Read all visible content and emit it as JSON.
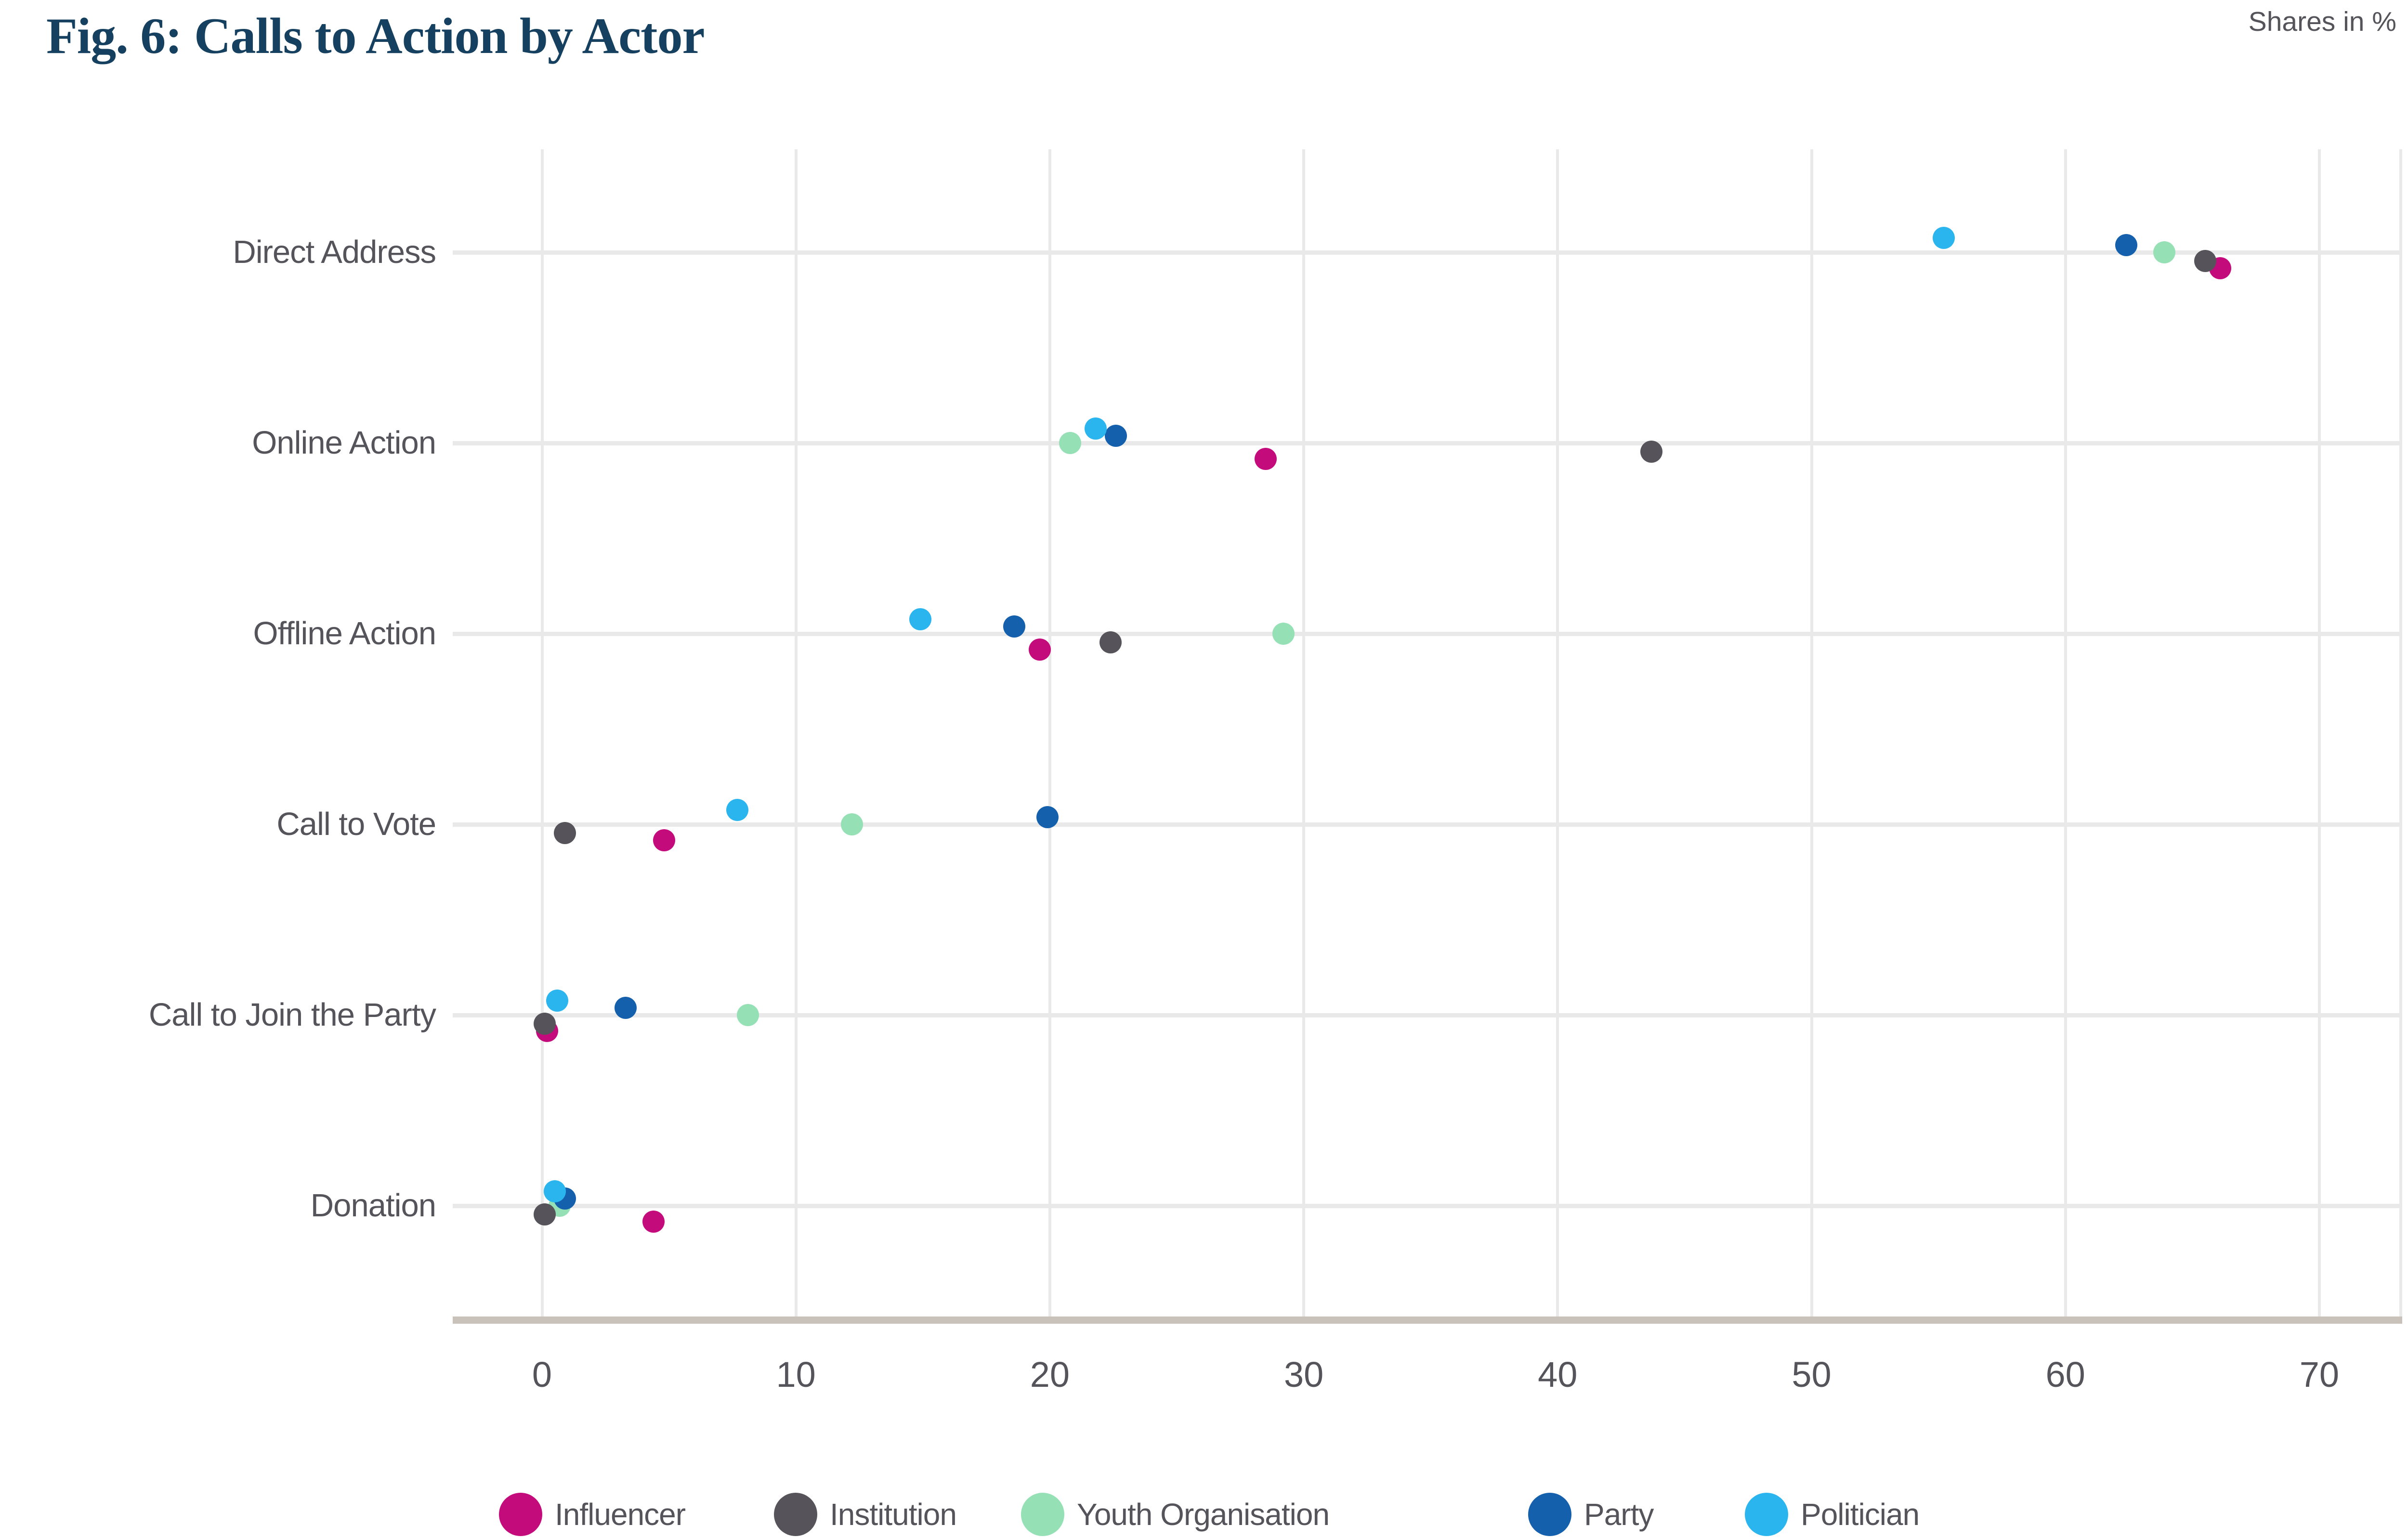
{
  "title": "Fig. 6: Calls to Action by Actor",
  "axis_note": "Shares in %",
  "colors": {
    "title": "#16405f",
    "text": "#55545b",
    "gridline": "#e9e9e9",
    "axis_line": "#c9c2ba",
    "background": "#ffffff"
  },
  "chart_data": {
    "type": "scatter",
    "variant": "horizontal-dot-plot",
    "title": "Fig. 6: Calls to Action by Actor",
    "units_note": "Shares in %",
    "categories": [
      "Direct Address",
      "Online Action",
      "Offline Action",
      "Call to Vote",
      "Call to Join the Party",
      "Donation"
    ],
    "x_ticks": [
      0,
      10,
      20,
      30,
      40,
      50,
      60,
      70
    ],
    "xlim": [
      -3.5,
      73.5
    ],
    "grid": true,
    "legend_position": "bottom",
    "series": [
      {
        "name": "Influencer",
        "color": "#c40b7c",
        "values": [
          66.1,
          28.5,
          19.6,
          4.8,
          0.2,
          4.4
        ]
      },
      {
        "name": "Institution",
        "color": "#56545a",
        "values": [
          65.5,
          43.7,
          22.4,
          0.9,
          0.1,
          0.1
        ]
      },
      {
        "name": "Youth Organisation",
        "color": "#95e0b5",
        "values": [
          63.9,
          20.8,
          29.2,
          12.2,
          8.1,
          0.7
        ]
      },
      {
        "name": "Party",
        "color": "#1560ac",
        "values": [
          62.4,
          22.6,
          18.6,
          19.9,
          3.3,
          0.9
        ]
      },
      {
        "name": "Politician",
        "color": "#2ab5ef",
        "values": [
          55.2,
          21.8,
          14.9,
          7.7,
          0.6,
          0.5
        ]
      }
    ]
  }
}
